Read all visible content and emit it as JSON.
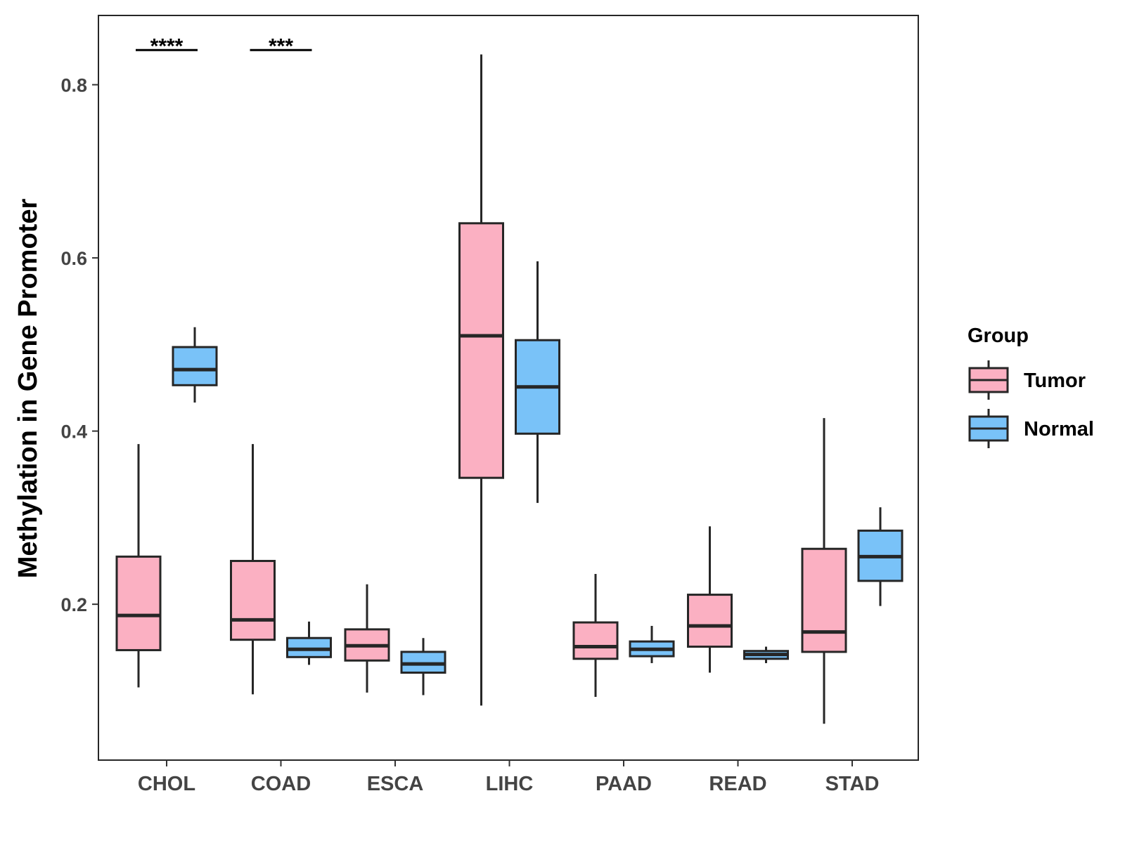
{
  "chart_data": {
    "type": "boxplot",
    "title": "",
    "xlabel": "",
    "ylabel": "Methylation in Gene Promoter",
    "ylim": [
      0.02,
      0.88
    ],
    "yticks": [
      0.2,
      0.4,
      0.6,
      0.8
    ],
    "ytick_labels": [
      "0.2",
      "0.4",
      "0.6",
      "0.8"
    ],
    "categories": [
      "CHOL",
      "COAD",
      "ESCA",
      "LIHC",
      "PAAD",
      "READ",
      "STAD"
    ],
    "grid": false,
    "legend": {
      "title": "Group",
      "position": "right",
      "entries": [
        "Tumor",
        "Normal"
      ]
    },
    "colors": {
      "Tumor": "#FBB0C2",
      "Normal": "#79C2F8",
      "outline": "#262626"
    },
    "series": [
      {
        "name": "Tumor",
        "boxes": [
          {
            "category": "CHOL",
            "whisker_low": 0.104,
            "q1": 0.147,
            "median": 0.187,
            "q3": 0.255,
            "whisker_high": 0.385
          },
          {
            "category": "COAD",
            "whisker_low": 0.096,
            "q1": 0.159,
            "median": 0.182,
            "q3": 0.25,
            "whisker_high": 0.385
          },
          {
            "category": "ESCA",
            "whisker_low": 0.098,
            "q1": 0.135,
            "median": 0.152,
            "q3": 0.171,
            "whisker_high": 0.223
          },
          {
            "category": "LIHC",
            "whisker_low": 0.083,
            "q1": 0.346,
            "median": 0.51,
            "q3": 0.64,
            "whisker_high": 0.835
          },
          {
            "category": "PAAD",
            "whisker_low": 0.093,
            "q1": 0.137,
            "median": 0.151,
            "q3": 0.179,
            "whisker_high": 0.235
          },
          {
            "category": "READ",
            "whisker_low": 0.121,
            "q1": 0.151,
            "median": 0.175,
            "q3": 0.211,
            "whisker_high": 0.29
          },
          {
            "category": "STAD",
            "whisker_low": 0.062,
            "q1": 0.145,
            "median": 0.168,
            "q3": 0.264,
            "whisker_high": 0.415
          }
        ]
      },
      {
        "name": "Normal",
        "boxes": [
          {
            "category": "CHOL",
            "whisker_low": 0.433,
            "q1": 0.453,
            "median": 0.471,
            "q3": 0.497,
            "whisker_high": 0.52
          },
          {
            "category": "COAD",
            "whisker_low": 0.13,
            "q1": 0.139,
            "median": 0.148,
            "q3": 0.161,
            "whisker_high": 0.18
          },
          {
            "category": "ESCA",
            "whisker_low": 0.095,
            "q1": 0.121,
            "median": 0.131,
            "q3": 0.145,
            "whisker_high": 0.161
          },
          {
            "category": "LIHC",
            "whisker_low": 0.317,
            "q1": 0.397,
            "median": 0.451,
            "q3": 0.505,
            "whisker_high": 0.596
          },
          {
            "category": "PAAD",
            "whisker_low": 0.132,
            "q1": 0.14,
            "median": 0.148,
            "q3": 0.157,
            "whisker_high": 0.175
          },
          {
            "category": "READ",
            "whisker_low": 0.132,
            "q1": 0.137,
            "median": 0.142,
            "q3": 0.146,
            "whisker_high": 0.151
          },
          {
            "category": "STAD",
            "whisker_low": 0.198,
            "q1": 0.227,
            "median": 0.255,
            "q3": 0.285,
            "whisker_high": 0.312
          }
        ]
      }
    ],
    "annotations": [
      {
        "category": "CHOL",
        "text": "****",
        "y": 0.84
      },
      {
        "category": "COAD",
        "text": "***",
        "y": 0.84
      }
    ]
  }
}
